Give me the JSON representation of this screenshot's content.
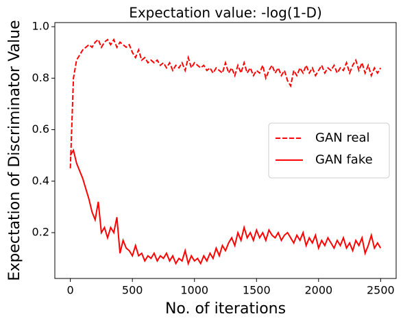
{
  "chart_data": {
    "type": "line",
    "title": "Expectation value: -log(1-D)",
    "xlabel": "No. of iterations",
    "ylabel": "Expectation of Discriminator Value",
    "x": [
      0,
      25,
      50,
      75,
      100,
      125,
      150,
      175,
      200,
      225,
      250,
      275,
      300,
      325,
      350,
      375,
      400,
      425,
      450,
      475,
      500,
      525,
      550,
      575,
      600,
      625,
      650,
      675,
      700,
      725,
      750,
      775,
      800,
      825,
      850,
      875,
      900,
      925,
      950,
      975,
      1000,
      1025,
      1050,
      1075,
      1100,
      1125,
      1150,
      1175,
      1200,
      1225,
      1250,
      1275,
      1300,
      1325,
      1350,
      1375,
      1400,
      1425,
      1450,
      1475,
      1500,
      1525,
      1550,
      1575,
      1600,
      1625,
      1650,
      1675,
      1700,
      1725,
      1750,
      1775,
      1800,
      1825,
      1850,
      1875,
      1900,
      1925,
      1950,
      1975,
      2000,
      2025,
      2050,
      2075,
      2100,
      2125,
      2150,
      2175,
      2200,
      2225,
      2250,
      2275,
      2300,
      2325,
      2350,
      2375,
      2400,
      2425,
      2450,
      2475,
      2500
    ],
    "series": [
      {
        "name": "GAN real",
        "color": "#ff0000",
        "linestyle": "dashed",
        "values": [
          0.45,
          0.8,
          0.87,
          0.89,
          0.91,
          0.92,
          0.93,
          0.92,
          0.94,
          0.95,
          0.92,
          0.94,
          0.95,
          0.93,
          0.95,
          0.92,
          0.94,
          0.93,
          0.92,
          0.93,
          0.9,
          0.88,
          0.91,
          0.87,
          0.88,
          0.86,
          0.87,
          0.86,
          0.87,
          0.85,
          0.86,
          0.84,
          0.86,
          0.83,
          0.85,
          0.84,
          0.86,
          0.83,
          0.88,
          0.84,
          0.86,
          0.85,
          0.84,
          0.85,
          0.83,
          0.84,
          0.82,
          0.84,
          0.83,
          0.82,
          0.86,
          0.82,
          0.84,
          0.81,
          0.85,
          0.82,
          0.86,
          0.82,
          0.84,
          0.81,
          0.83,
          0.82,
          0.85,
          0.8,
          0.83,
          0.85,
          0.82,
          0.84,
          0.81,
          0.83,
          0.79,
          0.77,
          0.83,
          0.81,
          0.84,
          0.82,
          0.85,
          0.82,
          0.84,
          0.81,
          0.83,
          0.85,
          0.82,
          0.84,
          0.83,
          0.85,
          0.82,
          0.84,
          0.83,
          0.86,
          0.82,
          0.85,
          0.87,
          0.83,
          0.86,
          0.82,
          0.85,
          0.81,
          0.84,
          0.82,
          0.84
        ]
      },
      {
        "name": "GAN fake",
        "color": "#ff0000",
        "linestyle": "solid",
        "values": [
          0.5,
          0.52,
          0.47,
          0.44,
          0.41,
          0.37,
          0.33,
          0.28,
          0.25,
          0.32,
          0.2,
          0.22,
          0.18,
          0.22,
          0.2,
          0.26,
          0.12,
          0.17,
          0.14,
          0.13,
          0.11,
          0.15,
          0.11,
          0.12,
          0.09,
          0.11,
          0.1,
          0.12,
          0.09,
          0.11,
          0.1,
          0.12,
          0.09,
          0.11,
          0.08,
          0.1,
          0.09,
          0.13,
          0.08,
          0.11,
          0.09,
          0.1,
          0.08,
          0.11,
          0.09,
          0.12,
          0.1,
          0.14,
          0.11,
          0.15,
          0.13,
          0.16,
          0.18,
          0.15,
          0.2,
          0.17,
          0.22,
          0.18,
          0.2,
          0.17,
          0.21,
          0.18,
          0.2,
          0.17,
          0.21,
          0.19,
          0.18,
          0.2,
          0.17,
          0.19,
          0.2,
          0.18,
          0.16,
          0.19,
          0.17,
          0.2,
          0.15,
          0.18,
          0.16,
          0.19,
          0.14,
          0.17,
          0.15,
          0.18,
          0.16,
          0.14,
          0.17,
          0.15,
          0.18,
          0.14,
          0.16,
          0.13,
          0.17,
          0.15,
          0.18,
          0.12,
          0.15,
          0.19,
          0.14,
          0.16,
          0.14
        ]
      }
    ],
    "xlim": [
      -125,
      2625
    ],
    "ylim": [
      0.022,
      1.016
    ],
    "xticks": [
      0,
      500,
      1000,
      1500,
      2000,
      2500
    ],
    "yticks": [
      0.2,
      0.4,
      0.6,
      0.8,
      {
        "value": 1,
        "label": "1.0"
      }
    ],
    "legend": "center right"
  }
}
